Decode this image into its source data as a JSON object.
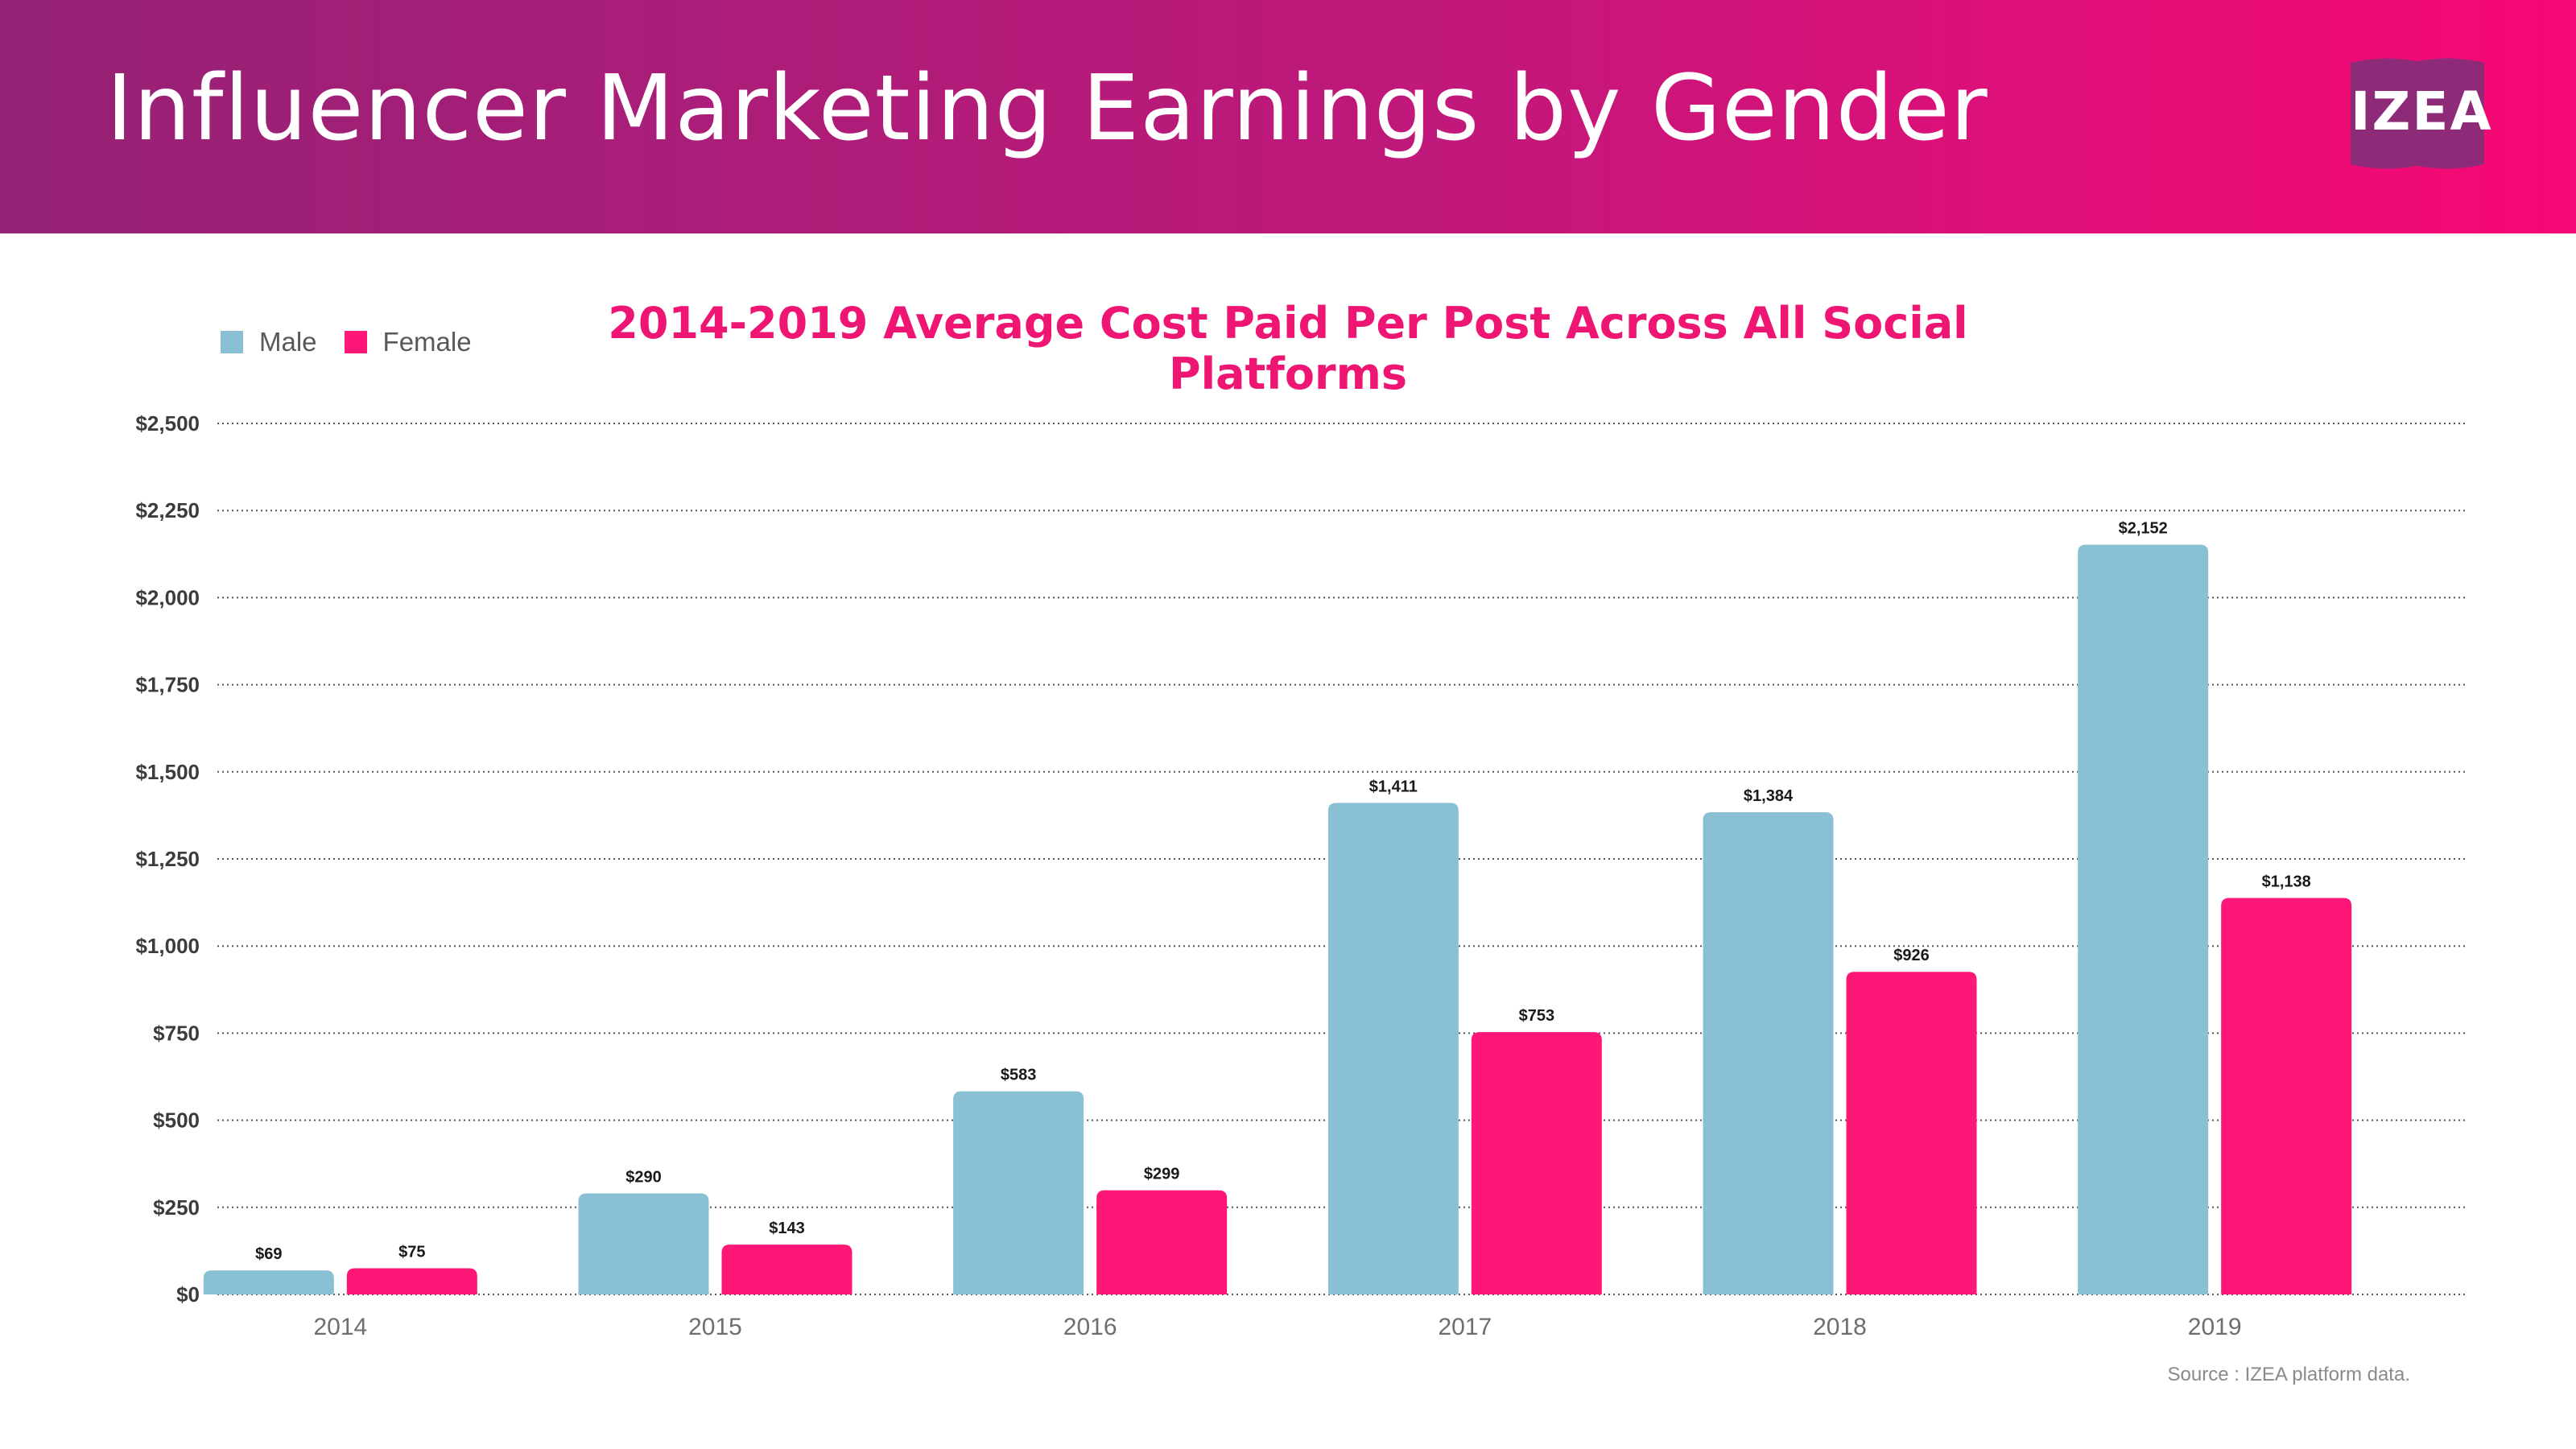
{
  "header": {
    "title": "Influencer Marketing Earnings by Gender",
    "logo_text": "IZEA"
  },
  "colors": {
    "male": "#89c0d4",
    "female": "#fe1776",
    "header_start": "#952275",
    "header_end": "#f80874",
    "title_accent": "#ee1573"
  },
  "legend": {
    "male_label": "Male",
    "female_label": "Female"
  },
  "source_note": "Source : IZEA platform data.",
  "chart_data": {
    "type": "bar",
    "title": "2014-2019 Average Cost Paid Per Post Across All Social Platforms",
    "xlabel": "",
    "ylabel": "",
    "categories": [
      "2014",
      "2015",
      "2016",
      "2017",
      "2018",
      "2019"
    ],
    "series": [
      {
        "name": "Male",
        "values": [
          69,
          290,
          583,
          1411,
          1384,
          2152
        ],
        "labels": [
          "$69",
          "$290",
          "$583",
          "$1,411",
          "$1,384",
          "$2,152"
        ]
      },
      {
        "name": "Female",
        "values": [
          75,
          143,
          299,
          753,
          926,
          1138
        ],
        "labels": [
          "$75",
          "$143",
          "$299",
          "$753",
          "$926",
          "$1,138"
        ]
      }
    ],
    "ylim": [
      0,
      2500
    ],
    "yticks": [
      0,
      250,
      500,
      750,
      1000,
      1250,
      1500,
      1750,
      2000,
      2250,
      2500
    ],
    "ytick_labels": [
      "$0",
      "$250",
      "$500",
      "$750",
      "$1,000",
      "$1,250",
      "$1,500",
      "$1,750",
      "$2,000",
      "$2,250",
      "$2,500"
    ],
    "grid": true,
    "grid_style": "dotted",
    "legend_position": "top-left"
  }
}
